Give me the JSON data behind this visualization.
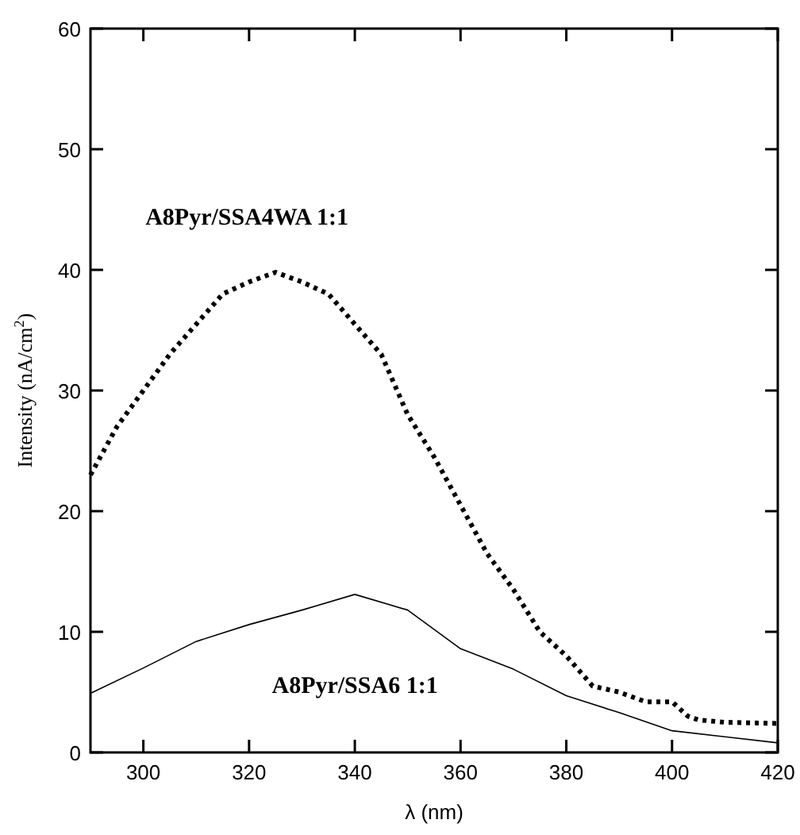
{
  "chart_data": {
    "type": "line",
    "xlabel": "λ (nm)",
    "ylabel": "Intensity (nA/cm$^{2}$)",
    "xlim": [
      290,
      420
    ],
    "xticks": [
      300,
      320,
      340,
      360,
      380,
      400,
      420
    ],
    "ylim": [
      0,
      60
    ],
    "yticks": [
      0,
      10,
      20,
      30,
      40,
      50,
      60
    ],
    "grid": false,
    "marker": "none",
    "series": [
      {
        "name": "A8Pyr/SSA4WA 1:1",
        "color": "#000000",
        "line_style": "dotted",
        "x": [
          290,
          295,
          300,
          305,
          310,
          315,
          320,
          325,
          330,
          335,
          340,
          345,
          350,
          355,
          360,
          365,
          370,
          375,
          380,
          385,
          390,
          395,
          400,
          403,
          405,
          410,
          420
        ],
        "values": [
          23,
          27,
          30,
          33,
          35.5,
          38,
          39,
          39.8,
          39,
          38,
          35.5,
          33,
          28,
          24.5,
          20.5,
          16.5,
          13.5,
          10,
          8,
          5.5,
          5,
          4.2,
          4.2,
          3,
          2.7,
          2.5,
          2.4
        ]
      },
      {
        "name": "A8Pyr/SSA6 1:1",
        "color": "#000000",
        "line_style": "solid",
        "x": [
          290,
          300,
          310,
          320,
          330,
          340,
          350,
          360,
          370,
          380,
          390,
          400,
          410,
          420
        ],
        "values": [
          4.9,
          7,
          9.2,
          10.6,
          11.8,
          13.1,
          11.8,
          8.6,
          6.9,
          4.7,
          3.3,
          1.8,
          1.3,
          0.8
        ]
      }
    ]
  }
}
